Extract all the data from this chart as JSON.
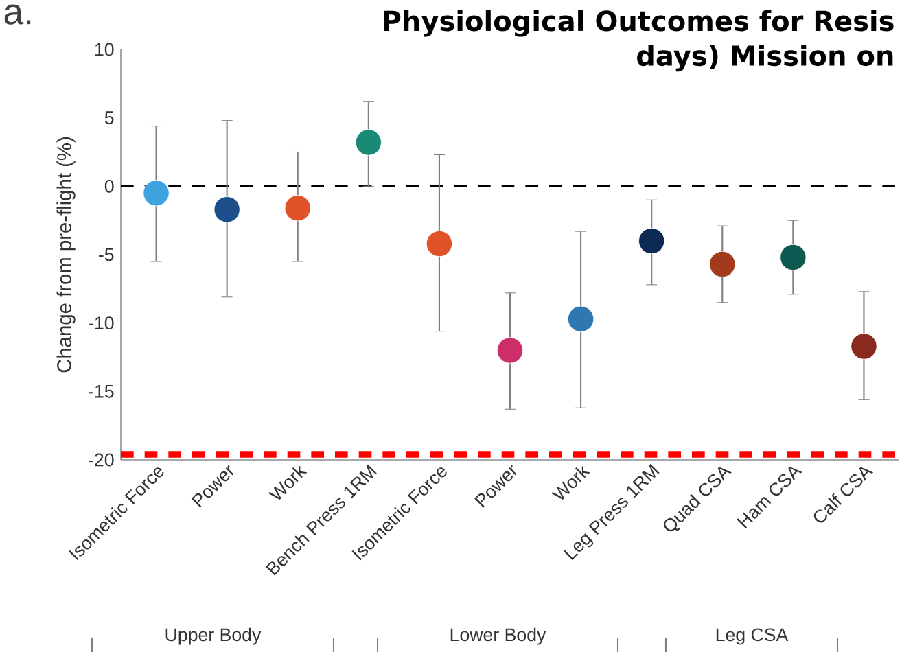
{
  "chart_data": {
    "type": "scatter",
    "title": "Physiological Outcomes for Resis",
    "subtitle": "days) Mission on",
    "ylabel": "Change from pre-flight (%)",
    "categories": [
      "Isometric Force",
      "Power",
      "Work",
      "Bench Press 1RM",
      "Isometric Force",
      "Power",
      "Work",
      "Leg Press 1RM",
      "Quad CSA",
      "Ham CSA",
      "Calf CSA"
    ],
    "values": [
      -0.5,
      -1.7,
      -1.6,
      3.2,
      -4.2,
      -12.0,
      -9.7,
      -4.0,
      -5.7,
      -5.2,
      -11.7
    ],
    "errors": [
      [
        -5.5,
        4.4
      ],
      [
        -8.1,
        4.8
      ],
      [
        -5.5,
        2.5
      ],
      [
        0.0,
        6.2
      ],
      [
        -10.6,
        2.3
      ],
      [
        -16.3,
        -7.8
      ],
      [
        -16.2,
        -3.3
      ],
      [
        -7.2,
        -1.0
      ],
      [
        -8.5,
        -2.9
      ],
      [
        -7.9,
        -2.5
      ],
      [
        -15.6,
        -7.7
      ]
    ],
    "colors": [
      "#3fa3e0",
      "#1c4f8a",
      "#e0522a",
      "#1a8a76",
      "#e0522a",
      "#cc2e6a",
      "#2f77b0",
      "#0d2a55",
      "#a33a1e",
      "#0e5a52",
      "#8a2a1e"
    ],
    "ylim": [
      -20,
      10
    ],
    "yticks": [
      -20,
      -15,
      -10,
      -5,
      0,
      5,
      10
    ],
    "ref_lines": [
      {
        "axis": "y",
        "value": 0,
        "color": "#000000",
        "line_style": "dashed"
      },
      {
        "axis": "y",
        "value": -19.6,
        "color": "#ff0000",
        "line_style": "dashed"
      }
    ],
    "annotations": [
      "a.",
      "Upper Body",
      "Lower Body",
      "Leg CSA"
    ]
  }
}
